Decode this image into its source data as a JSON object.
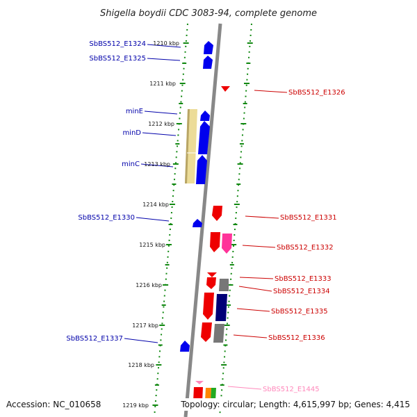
{
  "title": "Shigella boydii CDC 3083-94, complete genome",
  "footer": {
    "accession": "Accession: NC_010658",
    "summary": "Topology: circular; Length: 4,615,997 bp; Genes: 4,415"
  },
  "colors": {
    "blue_gene": "#0000ee",
    "red_gene": "#ee0000",
    "pink_gene": "#ff3399",
    "gray_gene": "#777777",
    "navy_gene": "#000077",
    "tan_region": "#ecdc98",
    "tick_green": "#118811",
    "backbone": "#888888",
    "left_label": "#0000aa",
    "right_label": "#cc0000",
    "faded_label": "#ff88bb"
  },
  "ticks": [
    "1210 kbp",
    "1211 kbp",
    "1212 kbp",
    "1213 kbp",
    "1214 kbp",
    "1215 kbp",
    "1216 kbp",
    "1217 kbp",
    "1218 kbp",
    "1219 kbp"
  ],
  "left_genes": [
    "SbBS512_E1324",
    "SbBS512_E1325",
    "minE",
    "minD",
    "minC",
    "SbBS512_E1330",
    "SbBS512_E1337"
  ],
  "right_genes": [
    "SbBS512_E1326",
    "SbBS512_E1331",
    "SbBS512_E1332",
    "SbBS512_E1333",
    "SbBS512_E1334",
    "SbBS512_E1335",
    "SbBS512_E1336",
    "SbBS512_E1445"
  ]
}
